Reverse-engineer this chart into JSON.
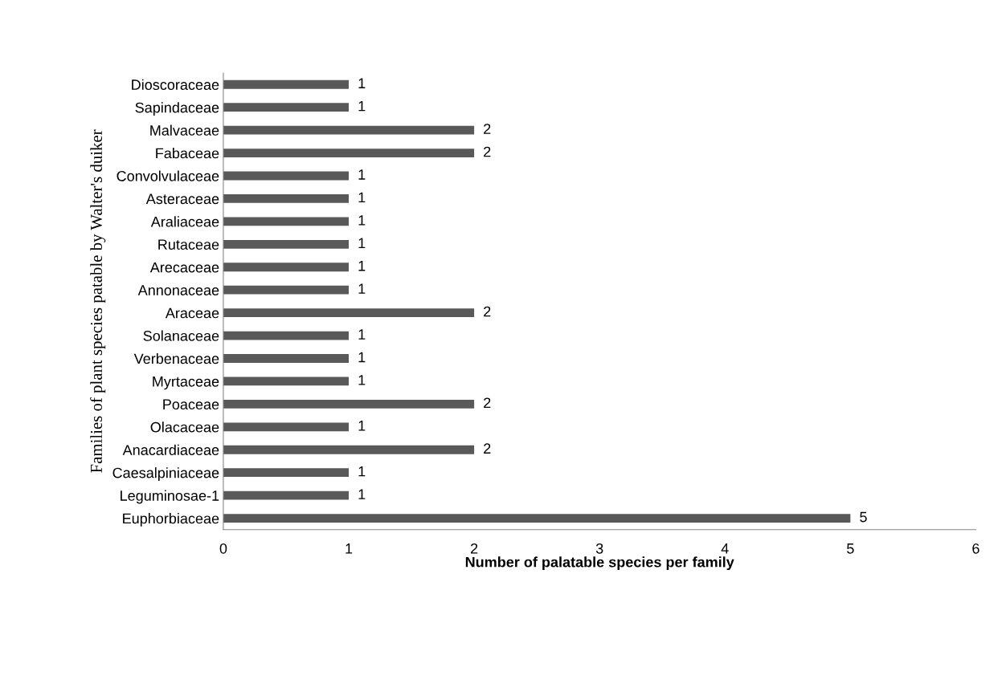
{
  "chart_data": {
    "type": "bar",
    "orientation": "horizontal",
    "xlabel": "Number of palatable species per family",
    "ylabel": "Families of plant species patable by Walter's duiker",
    "categories": [
      "Dioscoraceae",
      "Sapindaceae",
      "Malvaceae",
      "Fabaceae",
      "Convolvulaceae",
      "Asteraceae",
      "Araliaceae",
      "Rutaceae",
      "Arecaceae",
      "Annonaceae",
      "Araceae",
      "Solanaceae",
      "Verbenaceae",
      "Myrtaceae",
      "Poaceae",
      "Olacaceae",
      "Anacardiaceae",
      "Caesalpiniaceae",
      "Leguminosae-1",
      "Euphorbiaceae"
    ],
    "values": [
      1,
      1,
      2,
      2,
      1,
      1,
      1,
      1,
      1,
      1,
      2,
      1,
      1,
      1,
      2,
      1,
      2,
      1,
      1,
      5
    ],
    "color": "#595959",
    "xlim": [
      0,
      6
    ],
    "xticks": [
      0,
      1,
      2,
      3,
      4,
      5,
      6
    ],
    "data_labels": true,
    "grid": false,
    "legend": false
  }
}
